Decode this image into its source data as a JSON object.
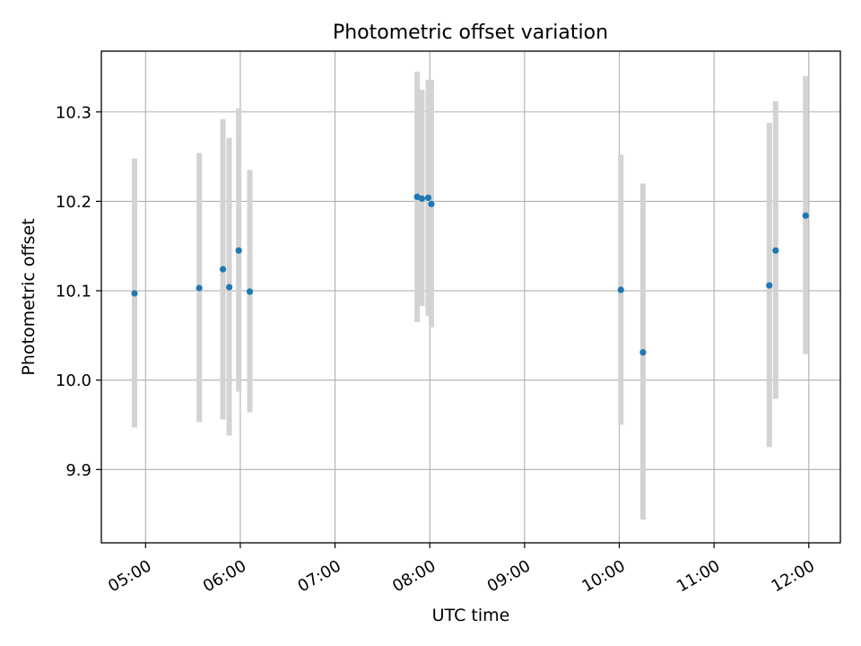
{
  "chart_data": {
    "type": "scatter",
    "title": "Photometric offset variation",
    "xlabel": "UTC time",
    "ylabel": "Photometric offset",
    "xlim": [
      "04:32",
      "12:20"
    ],
    "ylim": [
      9.818,
      10.368
    ],
    "x_ticks": [
      "05:00",
      "06:00",
      "07:00",
      "08:00",
      "09:00",
      "10:00",
      "11:00",
      "12:00"
    ],
    "y_ticks": [
      "9.9",
      "10.0",
      "10.1",
      "10.2",
      "10.3"
    ],
    "grid": true,
    "legend": "none",
    "points": [
      {
        "x": "04:53",
        "y": 10.097,
        "ylow": 9.947,
        "yhigh": 10.248
      },
      {
        "x": "05:34",
        "y": 10.103,
        "ylow": 9.953,
        "yhigh": 10.254
      },
      {
        "x": "05:49",
        "y": 10.124,
        "ylow": 9.956,
        "yhigh": 10.292
      },
      {
        "x": "05:53",
        "y": 10.104,
        "ylow": 9.938,
        "yhigh": 10.271
      },
      {
        "x": "05:59",
        "y": 10.145,
        "ylow": 9.987,
        "yhigh": 10.304
      },
      {
        "x": "06:06",
        "y": 10.099,
        "ylow": 9.964,
        "yhigh": 10.235
      },
      {
        "x": "07:52",
        "y": 10.205,
        "ylow": 10.065,
        "yhigh": 10.345
      },
      {
        "x": "07:55",
        "y": 10.203,
        "ylow": 10.083,
        "yhigh": 10.325
      },
      {
        "x": "07:59",
        "y": 10.204,
        "ylow": 10.072,
        "yhigh": 10.336
      },
      {
        "x": "08:01",
        "y": 10.197,
        "ylow": 10.059,
        "yhigh": 10.336
      },
      {
        "x": "10:01",
        "y": 10.101,
        "ylow": 9.95,
        "yhigh": 10.252
      },
      {
        "x": "10:15",
        "y": 10.031,
        "ylow": 9.844,
        "yhigh": 10.22
      },
      {
        "x": "11:35",
        "y": 10.106,
        "ylow": 9.925,
        "yhigh": 10.288
      },
      {
        "x": "11:39",
        "y": 10.145,
        "ylow": 9.979,
        "yhigh": 10.312
      },
      {
        "x": "11:58",
        "y": 10.184,
        "ylow": 10.029,
        "yhigh": 10.34
      }
    ],
    "colors": {
      "point": "#1f77b4",
      "errorbar": "#d3d3d3",
      "grid": "#b0b0b0",
      "axes": "#000000"
    }
  }
}
